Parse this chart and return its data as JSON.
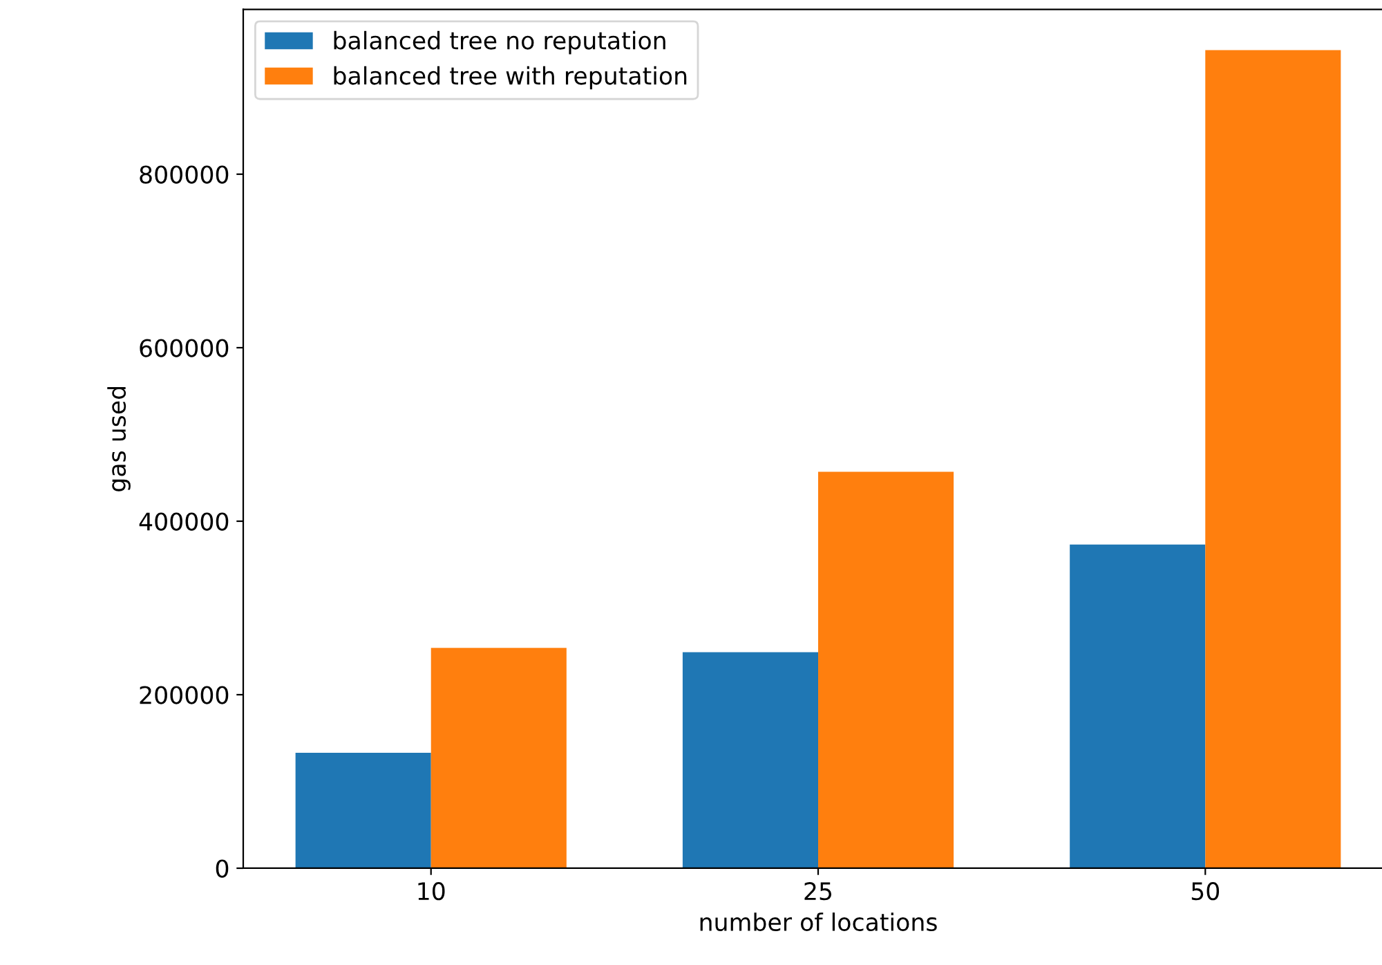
{
  "chart_data": {
    "type": "bar",
    "xlabel": "number of locations",
    "ylabel": "gas used",
    "categories": [
      "10",
      "25",
      "50"
    ],
    "series": [
      {
        "name": "balanced tree no reputation",
        "color": "#1f77b4",
        "values": [
          133000,
          249000,
          373000
        ]
      },
      {
        "name": "balanced tree with reputation",
        "color": "#ff7f0e",
        "values": [
          254000,
          457000,
          943000
        ]
      }
    ],
    "ylim": [
      0,
      990000
    ],
    "yticks": [
      0,
      200000,
      400000,
      600000,
      800000
    ],
    "grid": false,
    "legend": "top left"
  }
}
